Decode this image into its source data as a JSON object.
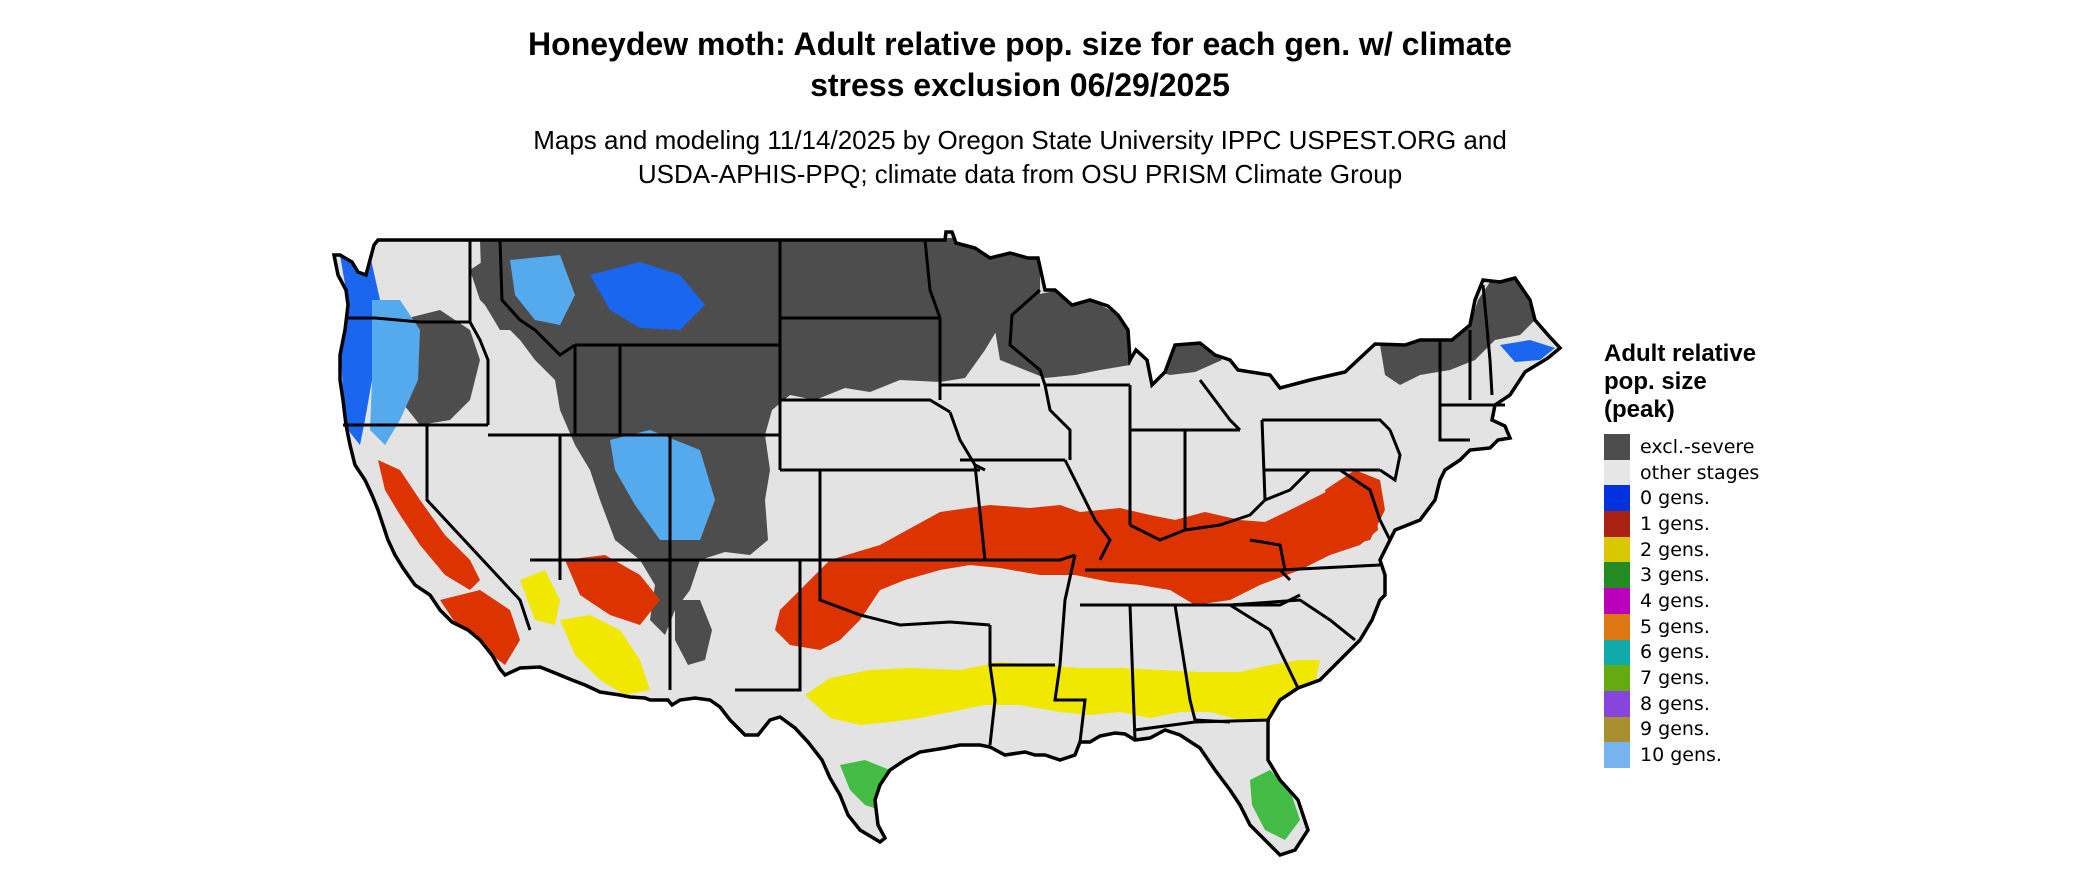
{
  "header": {
    "title_line1": "Honeydew moth: Adult relative pop. size for each gen. w/ climate",
    "title_line2": "stress exclusion 06/29/2025",
    "subtitle_line1": "Maps and modeling 11/14/2025 by Oregon State University IPPC USPEST.ORG and",
    "subtitle_line2": "USDA-APHIS-PPQ; climate data from OSU PRISM Climate Group"
  },
  "legend": {
    "title_line1": "Adult relative",
    "title_line2": "pop. size",
    "title_line3": "(peak)",
    "items": [
      {
        "label": "excl.-severe",
        "color": "#4d4d4d"
      },
      {
        "label": "other stages",
        "color": "#e6e6e6"
      },
      {
        "label": "0 gens.",
        "color": "#0033dd"
      },
      {
        "label": "1 gens.",
        "color": "#aa2211"
      },
      {
        "label": "2 gens.",
        "color": "#d9c800"
      },
      {
        "label": "3 gens.",
        "color": "#228b22"
      },
      {
        "label": "4 gens.",
        "color": "#bb00bb"
      },
      {
        "label": "5 gens.",
        "color": "#dd7711"
      },
      {
        "label": "6 gens.",
        "color": "#11aaaa"
      },
      {
        "label": "7 gens.",
        "color": "#66aa11"
      },
      {
        "label": "8 gens.",
        "color": "#8844dd"
      },
      {
        "label": "9 gens.",
        "color": "#a89030"
      },
      {
        "label": "10 gens.",
        "color": "#77b3ee"
      }
    ]
  },
  "map_colors": {
    "background": "#e3e3e3",
    "excluded": "#4d4d4d",
    "zero_gen_blue": "#1a66ee",
    "light_blue": "#55aaee",
    "one_gen_red": "#dd3300",
    "two_gen_yellow": "#f0e800",
    "three_gen_green": "#44bb44",
    "border": "#000000"
  }
}
